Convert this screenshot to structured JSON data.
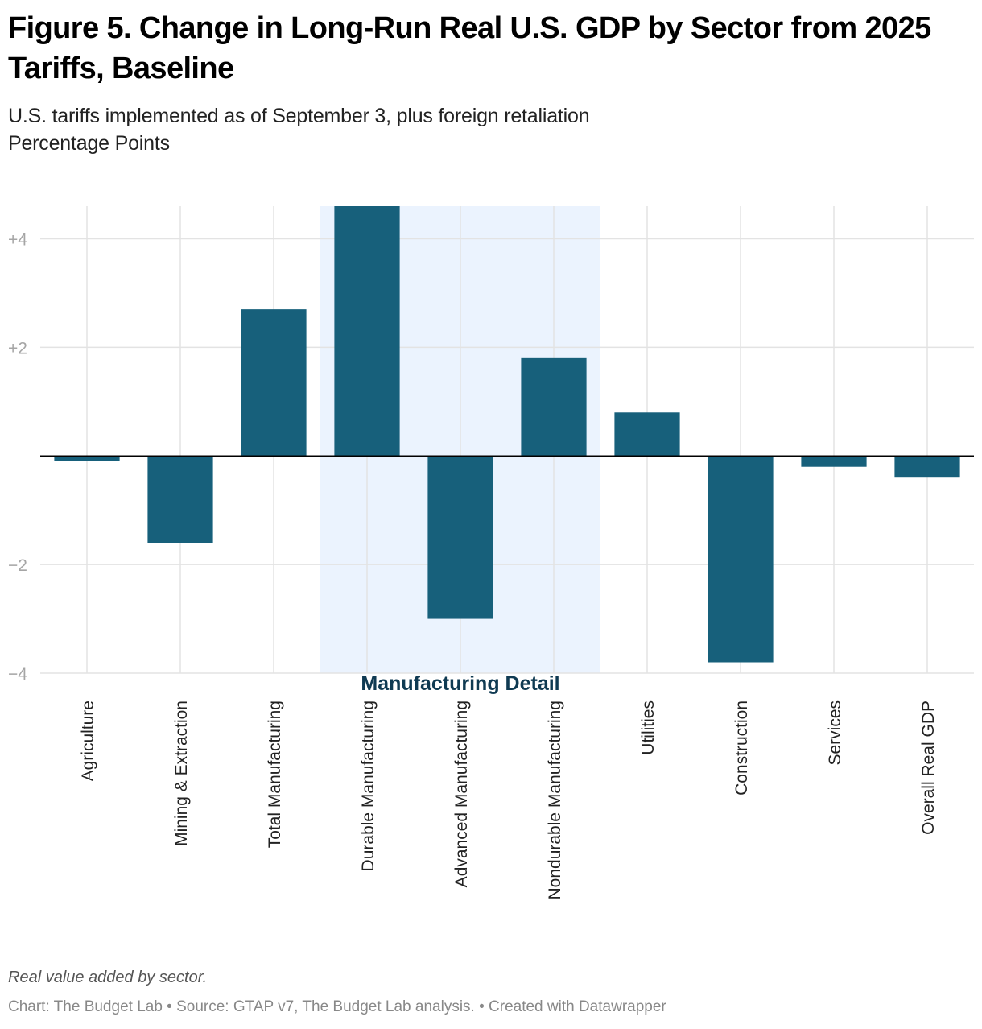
{
  "chart_data": {
    "type": "bar",
    "title": "Figure 5. Change in Long-Run Real U.S. GDP by Sector from 2025 Tariffs, Baseline",
    "subtitle": "U.S. tariffs implemented as of September 3, plus foreign retaliation",
    "y_axis_label": "Percentage Points",
    "categories": [
      "Agriculture",
      "Mining & Extraction",
      "Total Manufacturing",
      "Durable Manufacturing",
      "Advanced Manufacturing",
      "Nondurable Manufacturing",
      "Utilities",
      "Construction",
      "Services",
      "Overall Real GDP"
    ],
    "values": [
      -0.1,
      -1.6,
      2.7,
      4.6,
      -3.0,
      1.8,
      0.8,
      -3.8,
      -0.2,
      -0.4
    ],
    "color": "#17607b",
    "ylim": [
      -4,
      4.6
    ],
    "yticks": [
      {
        "value": 4,
        "label": "+4"
      },
      {
        "value": 2,
        "label": "+2"
      },
      {
        "value": -2,
        "label": "−2"
      },
      {
        "value": -4,
        "label": "−4"
      }
    ],
    "grid": true,
    "highlight": {
      "label": "Manufacturing Detail",
      "from": "Durable Manufacturing",
      "to": "Nondurable Manufacturing",
      "color": "#ebf3fe"
    },
    "note": "Real value added by sector.",
    "credit": "Chart: The Budget Lab • Source: GTAP v7, The Budget Lab analysis. • Created with Datawrapper"
  }
}
